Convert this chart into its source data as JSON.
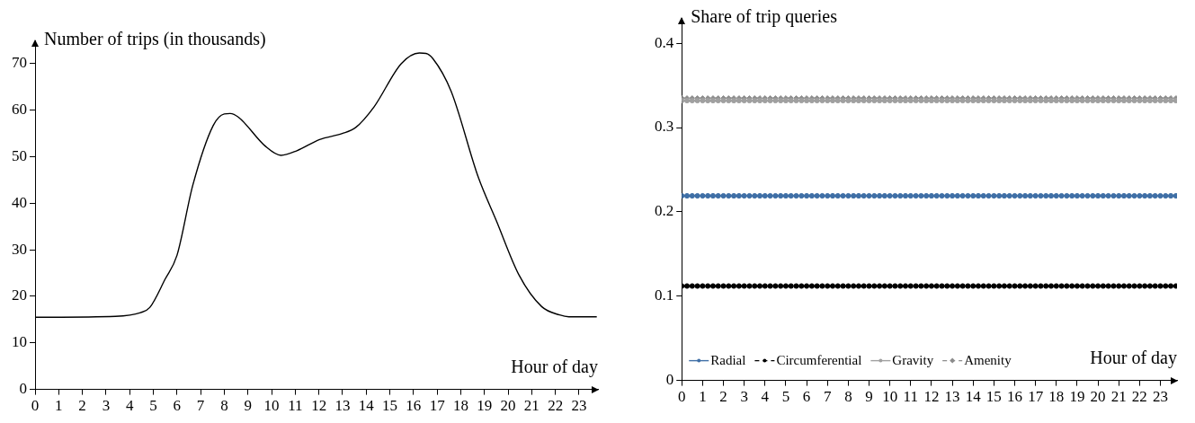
{
  "chart_data": [
    {
      "type": "line",
      "xlabel": "Hour of day",
      "ylabel": "Number of trips (in thousands)",
      "x": [
        0,
        3.4,
        4.46,
        4.85,
        5.5,
        6,
        6.67,
        7.53,
        8,
        8.25,
        8.6,
        9.73,
        10.4,
        11.07,
        12.03,
        12.99,
        13.56,
        14.33,
        15.48,
        16.25,
        16.53,
        16.82,
        17.59,
        18.74,
        19.5,
        20.46,
        21.42,
        22.18,
        22.57,
        23.75
      ],
      "values": [
        15.5,
        15.7,
        16.5,
        17.6,
        23.7,
        28.8,
        43.9,
        56.7,
        59.2,
        59.3,
        58.5,
        52.3,
        50.3,
        51.3,
        53.7,
        55,
        56.3,
        60.7,
        70,
        72.3,
        72.2,
        71.1,
        64.1,
        45.6,
        36.3,
        24.6,
        17.8,
        16,
        15.6,
        15.6
      ],
      "color": "#000000",
      "marker": "none",
      "grid": false,
      "xlim": [
        0,
        23.8
      ],
      "xticks": [
        0,
        1,
        2,
        3,
        4,
        5,
        6,
        7,
        8,
        9,
        10,
        11,
        12,
        13,
        14,
        15,
        16,
        17,
        18,
        19,
        20,
        21,
        22,
        23
      ],
      "ylim": [
        0,
        75
      ],
      "yticks": [
        0,
        10,
        20,
        30,
        40,
        50,
        60,
        70
      ]
    },
    {
      "type": "line",
      "xlabel": "Hour of day",
      "ylabel": "Share of trip queries",
      "grid": false,
      "legend": "bottom left",
      "x": [
        0,
        0.25,
        0.5,
        0.75,
        1,
        1.25,
        1.5,
        1.75,
        2,
        2.25,
        2.5,
        2.75,
        3,
        3.25,
        3.5,
        3.75,
        4,
        4.25,
        4.5,
        4.75,
        5,
        5.25,
        5.5,
        5.75,
        6,
        6.25,
        6.5,
        6.75,
        7,
        7.25,
        7.5,
        7.75,
        8,
        8.25,
        8.5,
        8.75,
        9,
        9.25,
        9.5,
        9.75,
        10,
        10.25,
        10.5,
        10.75,
        11,
        11.25,
        11.5,
        11.75,
        12,
        12.25,
        12.5,
        12.75,
        13,
        13.25,
        13.5,
        13.75,
        14,
        14.25,
        14.5,
        14.75,
        15,
        15.25,
        15.5,
        15.75,
        16,
        16.25,
        16.5,
        16.75,
        17,
        17.25,
        17.5,
        17.75,
        18,
        18.25,
        18.5,
        18.75,
        19,
        19.25,
        19.5,
        19.75,
        20,
        20.25,
        20.5,
        20.75,
        21,
        21.25,
        21.5,
        21.75,
        22,
        22.25,
        22.5,
        22.75,
        23,
        23.25,
        23.5,
        23.75
      ],
      "series": [
        {
          "name": "Radial",
          "color": "#3f6fa6",
          "marker": "circle",
          "line_style": "solid",
          "values": [
            0.219,
            0.219,
            0.219,
            0.219,
            0.219,
            0.219,
            0.219,
            0.219,
            0.219,
            0.219,
            0.219,
            0.219,
            0.219,
            0.219,
            0.219,
            0.219,
            0.219,
            0.219,
            0.219,
            0.219,
            0.219,
            0.219,
            0.219,
            0.219,
            0.219,
            0.219,
            0.219,
            0.219,
            0.219,
            0.219,
            0.219,
            0.219,
            0.219,
            0.219,
            0.219,
            0.219,
            0.219,
            0.219,
            0.219,
            0.219,
            0.219,
            0.219,
            0.219,
            0.219,
            0.219,
            0.219,
            0.219,
            0.219,
            0.219,
            0.219,
            0.219,
            0.219,
            0.219,
            0.219,
            0.219,
            0.219,
            0.219,
            0.219,
            0.219,
            0.219,
            0.219,
            0.219,
            0.219,
            0.219,
            0.219,
            0.219,
            0.219,
            0.219,
            0.219,
            0.219,
            0.219,
            0.219,
            0.219,
            0.219,
            0.219,
            0.219,
            0.219,
            0.219,
            0.219,
            0.219,
            0.219,
            0.219,
            0.219,
            0.219,
            0.219,
            0.219,
            0.219,
            0.219,
            0.219,
            0.219,
            0.219,
            0.219,
            0.219,
            0.219,
            0.219,
            0.219
          ]
        },
        {
          "name": "Circumferential",
          "color": "#000000",
          "marker": "circle",
          "line_style": "dashed",
          "values": [
            0.112,
            0.112,
            0.112,
            0.112,
            0.112,
            0.112,
            0.112,
            0.112,
            0.112,
            0.112,
            0.112,
            0.112,
            0.112,
            0.112,
            0.112,
            0.112,
            0.112,
            0.112,
            0.112,
            0.112,
            0.112,
            0.112,
            0.112,
            0.112,
            0.112,
            0.112,
            0.112,
            0.112,
            0.112,
            0.112,
            0.112,
            0.112,
            0.112,
            0.112,
            0.112,
            0.112,
            0.112,
            0.112,
            0.112,
            0.112,
            0.112,
            0.112,
            0.112,
            0.112,
            0.112,
            0.112,
            0.112,
            0.112,
            0.112,
            0.112,
            0.112,
            0.112,
            0.112,
            0.112,
            0.112,
            0.112,
            0.112,
            0.112,
            0.112,
            0.112,
            0.112,
            0.112,
            0.112,
            0.112,
            0.112,
            0.112,
            0.112,
            0.112,
            0.112,
            0.112,
            0.112,
            0.112,
            0.112,
            0.112,
            0.112,
            0.112,
            0.112,
            0.112,
            0.112,
            0.112,
            0.112,
            0.112,
            0.112,
            0.112,
            0.112,
            0.112,
            0.112,
            0.112,
            0.112,
            0.112,
            0.112,
            0.112,
            0.112,
            0.112,
            0.112,
            0.112
          ]
        },
        {
          "name": "Gravity",
          "color": "#a0a0a0",
          "marker": "circle",
          "line_style": "solid",
          "values": [
            0.332,
            0.332,
            0.332,
            0.332,
            0.332,
            0.332,
            0.332,
            0.332,
            0.332,
            0.332,
            0.332,
            0.332,
            0.332,
            0.332,
            0.332,
            0.332,
            0.332,
            0.332,
            0.332,
            0.332,
            0.332,
            0.332,
            0.332,
            0.332,
            0.332,
            0.332,
            0.332,
            0.332,
            0.332,
            0.332,
            0.332,
            0.332,
            0.332,
            0.332,
            0.332,
            0.332,
            0.332,
            0.332,
            0.332,
            0.332,
            0.332,
            0.332,
            0.332,
            0.332,
            0.332,
            0.332,
            0.332,
            0.332,
            0.332,
            0.332,
            0.332,
            0.332,
            0.332,
            0.332,
            0.332,
            0.332,
            0.332,
            0.332,
            0.332,
            0.332,
            0.332,
            0.332,
            0.332,
            0.332,
            0.332,
            0.332,
            0.332,
            0.332,
            0.332,
            0.332,
            0.332,
            0.332,
            0.332,
            0.332,
            0.332,
            0.332,
            0.332,
            0.332,
            0.332,
            0.332,
            0.332,
            0.332,
            0.332,
            0.332,
            0.332,
            0.332,
            0.332,
            0.332,
            0.332,
            0.332,
            0.332,
            0.332,
            0.332,
            0.332,
            0.332,
            0.332
          ]
        },
        {
          "name": "Amenity",
          "color": "#8c8c8c",
          "marker": "diamond",
          "line_style": "dashed",
          "values": [
            0.335,
            0.335,
            0.335,
            0.335,
            0.335,
            0.335,
            0.335,
            0.335,
            0.335,
            0.335,
            0.335,
            0.335,
            0.335,
            0.335,
            0.335,
            0.335,
            0.335,
            0.335,
            0.335,
            0.335,
            0.335,
            0.335,
            0.335,
            0.335,
            0.335,
            0.335,
            0.335,
            0.335,
            0.335,
            0.335,
            0.335,
            0.335,
            0.335,
            0.335,
            0.335,
            0.335,
            0.335,
            0.335,
            0.335,
            0.335,
            0.335,
            0.335,
            0.335,
            0.335,
            0.335,
            0.335,
            0.335,
            0.335,
            0.335,
            0.335,
            0.335,
            0.335,
            0.335,
            0.335,
            0.335,
            0.335,
            0.335,
            0.335,
            0.335,
            0.335,
            0.335,
            0.335,
            0.335,
            0.335,
            0.335,
            0.335,
            0.335,
            0.335,
            0.335,
            0.335,
            0.335,
            0.335,
            0.335,
            0.335,
            0.335,
            0.335,
            0.335,
            0.335,
            0.335,
            0.335,
            0.335,
            0.335,
            0.335,
            0.335,
            0.335,
            0.335,
            0.335,
            0.335,
            0.335,
            0.335,
            0.335,
            0.335,
            0.335,
            0.335,
            0.335,
            0.335
          ]
        }
      ],
      "xlim": [
        0,
        23.8
      ],
      "xticks": [
        0,
        1,
        2,
        3,
        4,
        5,
        6,
        7,
        8,
        9,
        10,
        11,
        12,
        13,
        14,
        15,
        16,
        17,
        18,
        19,
        20,
        21,
        22,
        23
      ],
      "ylim": [
        0,
        0.43
      ],
      "yticks": [
        0,
        0.1,
        0.2,
        0.3,
        0.4
      ]
    }
  ]
}
